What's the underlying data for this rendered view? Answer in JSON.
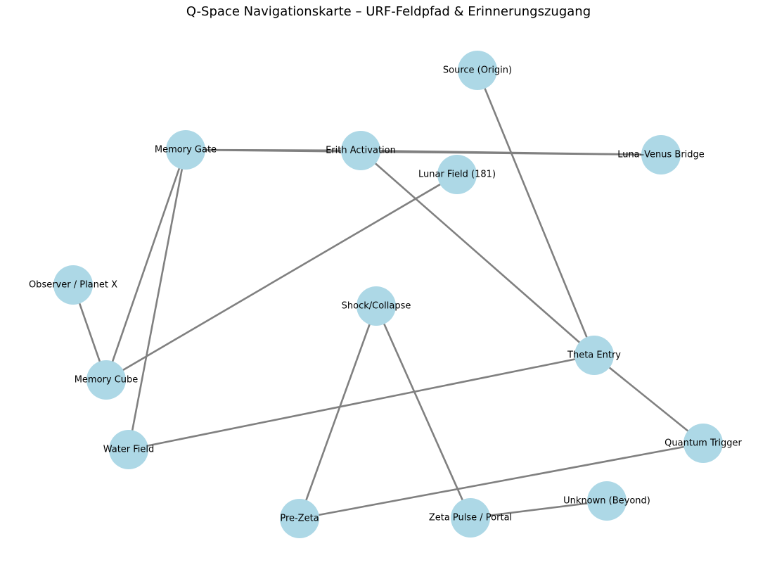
{
  "title": "Q-Space Navigationskarte – URF-Feldpfad & Erinnerungszugang",
  "colors": {
    "node_fill": "#add8e6",
    "edge_stroke": "#808080",
    "label": "#000000",
    "background": "#ffffff"
  },
  "nodes": [
    {
      "id": "source",
      "label": "Source (Origin)"
    },
    {
      "id": "memory-gate",
      "label": "Memory Gate"
    },
    {
      "id": "erith",
      "label": "Erith Activation"
    },
    {
      "id": "luna-venus",
      "label": "Luna–Venus Bridge"
    },
    {
      "id": "lunar-field",
      "label": "Lunar Field (181)"
    },
    {
      "id": "observer",
      "label": "Observer / Planet X"
    },
    {
      "id": "shock",
      "label": "Shock/Collapse"
    },
    {
      "id": "theta",
      "label": "Theta Entry"
    },
    {
      "id": "memory-cube",
      "label": "Memory Cube"
    },
    {
      "id": "water-field",
      "label": "Water Field"
    },
    {
      "id": "quantum",
      "label": "Quantum Trigger"
    },
    {
      "id": "unknown",
      "label": "Unknown (Beyond)"
    },
    {
      "id": "pre-zeta",
      "label": "Pre-Zeta"
    },
    {
      "id": "zeta",
      "label": "Zeta Pulse / Portal"
    }
  ],
  "edges": [
    [
      "memory-gate",
      "erith"
    ],
    [
      "erith",
      "luna-venus"
    ],
    [
      "memory-gate",
      "luna-venus"
    ],
    [
      "erith",
      "theta"
    ],
    [
      "source",
      "theta"
    ],
    [
      "memory-gate",
      "memory-cube"
    ],
    [
      "memory-gate",
      "water-field"
    ],
    [
      "lunar-field",
      "memory-cube"
    ],
    [
      "observer",
      "memory-cube"
    ],
    [
      "theta",
      "water-field"
    ],
    [
      "theta",
      "quantum"
    ],
    [
      "quantum",
      "pre-zeta"
    ],
    [
      "shock",
      "pre-zeta"
    ],
    [
      "shock",
      "zeta"
    ],
    [
      "zeta",
      "unknown"
    ]
  ]
}
